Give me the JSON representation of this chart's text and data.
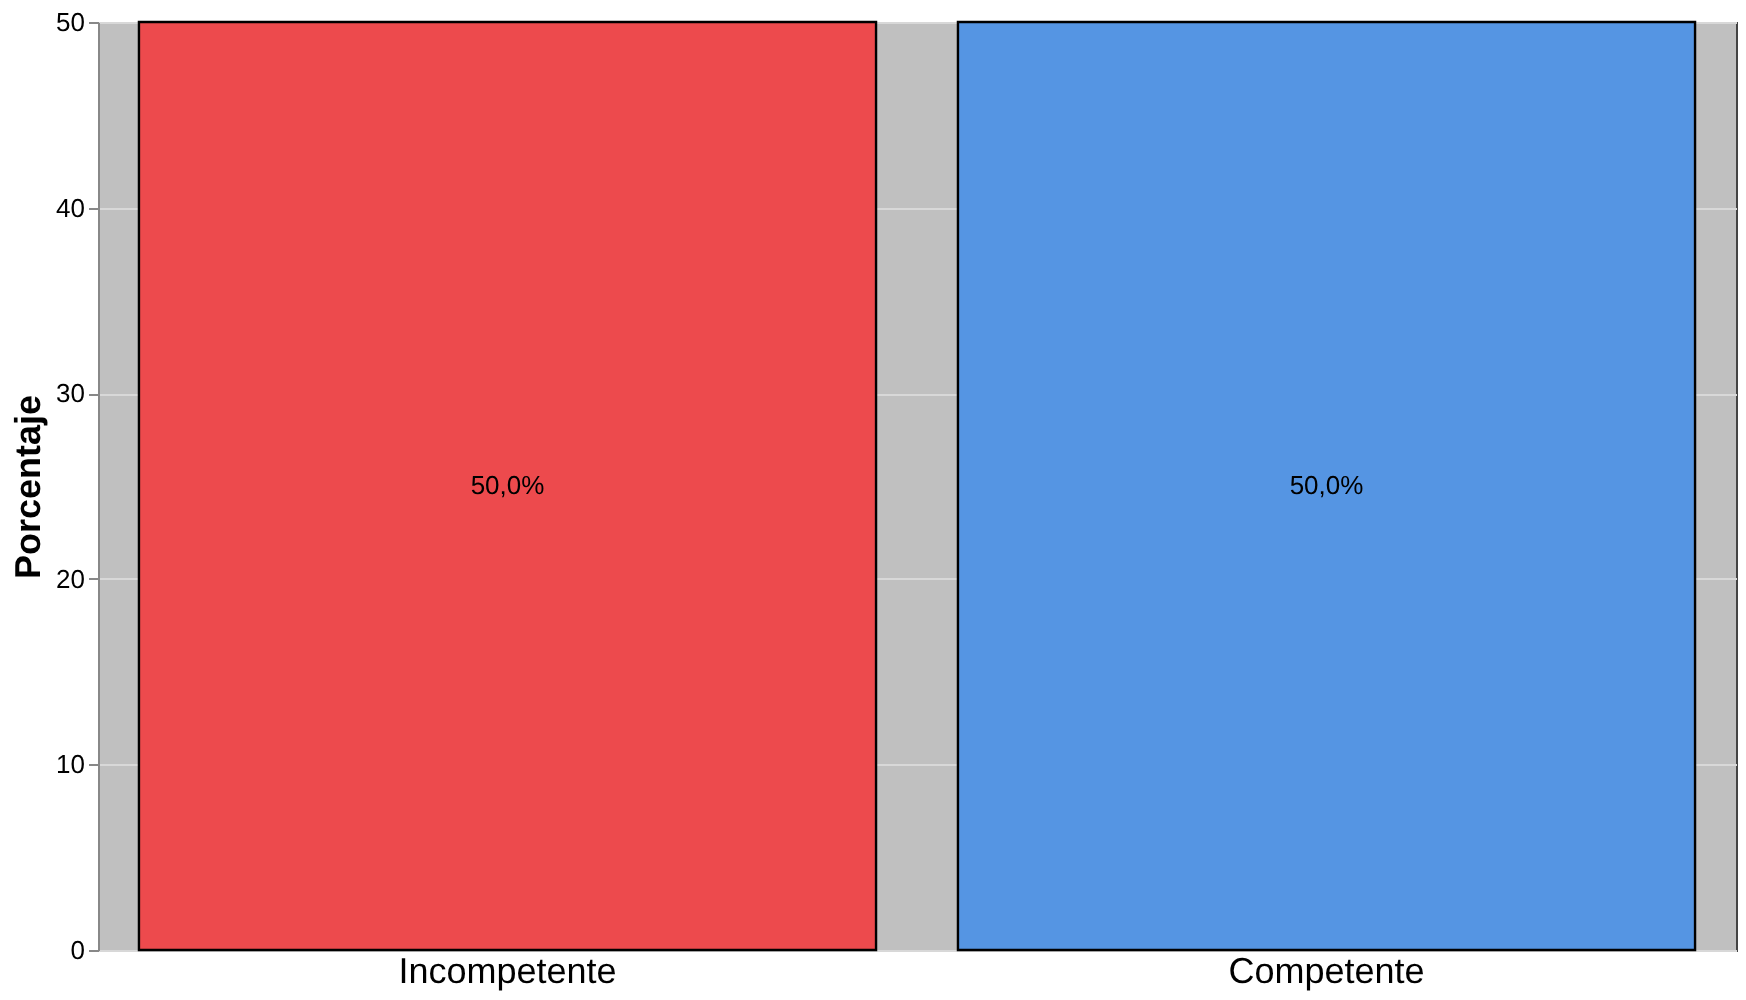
{
  "chart_data": {
    "type": "bar",
    "ylabel": "Porcentaje",
    "categories": [
      "Incompetente",
      "Competente"
    ],
    "values": [
      50,
      50
    ],
    "colors": [
      "#ed4a4d",
      "#5595e3"
    ],
    "value_labels": [
      "50,0%",
      "50,0%"
    ],
    "ylim": [
      0,
      50
    ],
    "yticks": [
      0,
      10,
      20,
      30,
      40,
      50
    ],
    "grid": "y"
  }
}
